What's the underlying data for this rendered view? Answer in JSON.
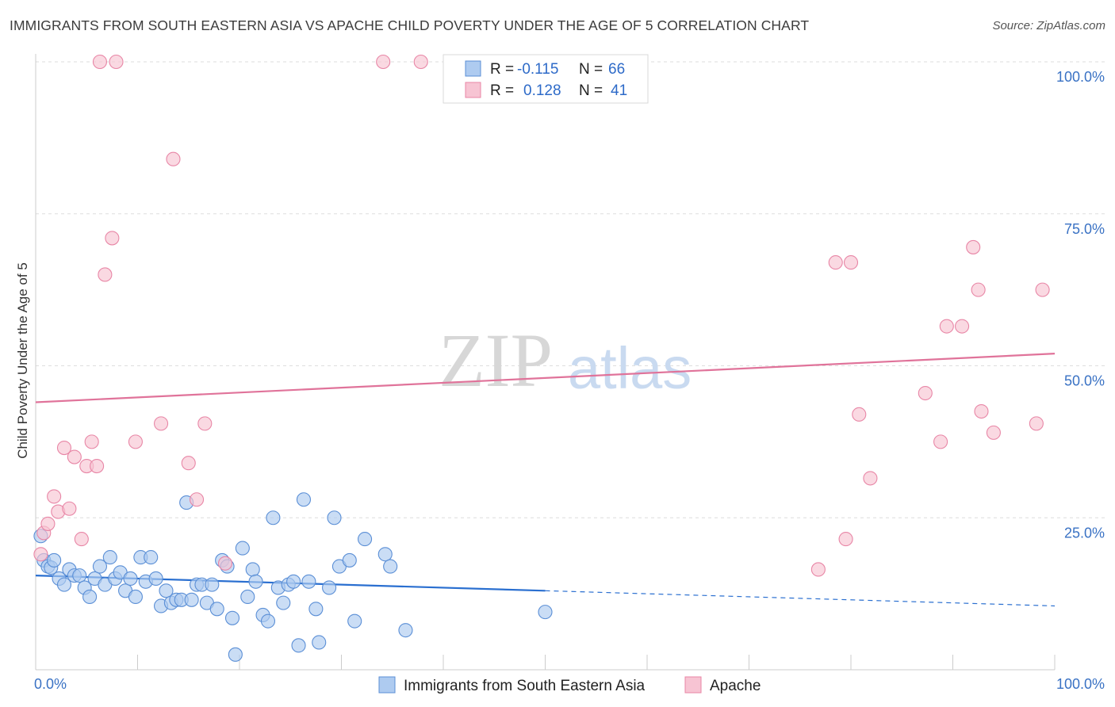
{
  "title": "IMMIGRANTS FROM SOUTH EASTERN ASIA VS APACHE CHILD POVERTY UNDER THE AGE OF 5 CORRELATION CHART",
  "source": "Source: ZipAtlas.com",
  "watermark": {
    "zip": "ZIP",
    "atlas": "atlas"
  },
  "colors": {
    "blue_fill": "#aecbf0",
    "blue_stroke": "#5b8fd6",
    "blue_line": "#2a6fd0",
    "pink_fill": "#f7c4d3",
    "pink_stroke": "#e886a6",
    "pink_line": "#e0739a",
    "tick_text": "#3a72c4"
  },
  "legend_box": {
    "rows": [
      {
        "r_label": "R =",
        "r_value": "-0.115",
        "n_label": "N =",
        "n_value": "66"
      },
      {
        "r_label": "R =",
        "r_value": "0.128",
        "n_label": "N =",
        "n_value": "41"
      }
    ]
  },
  "chart_data": {
    "type": "scatter",
    "title": "IMMIGRANTS FROM SOUTH EASTERN ASIA VS APACHE CHILD POVERTY UNDER THE AGE OF 5 CORRELATION CHART",
    "xlabel": "",
    "ylabel": "Child Poverty Under the Age of 5",
    "xlim": [
      0,
      100
    ],
    "ylim": [
      0,
      100
    ],
    "x_tick_labels": [
      "0.0%",
      "100.0%"
    ],
    "y_ticks": [
      25,
      50,
      75,
      100
    ],
    "y_tick_labels": [
      "25.0%",
      "50.0%",
      "75.0%",
      "100.0%"
    ],
    "grid": true,
    "legend_position": "bottom",
    "series": [
      {
        "name": "Immigrants from South Eastern Asia",
        "color": "#aecbf0",
        "points": [
          [
            0.5,
            22.0
          ],
          [
            0.8,
            18.0
          ],
          [
            1.2,
            17.0
          ],
          [
            1.5,
            16.8
          ],
          [
            1.8,
            18.0
          ],
          [
            2.3,
            15.0
          ],
          [
            2.8,
            14.0
          ],
          [
            3.3,
            16.5
          ],
          [
            3.8,
            15.5
          ],
          [
            4.3,
            15.5
          ],
          [
            4.8,
            13.5
          ],
          [
            5.3,
            12.0
          ],
          [
            5.8,
            15.0
          ],
          [
            6.3,
            17.0
          ],
          [
            6.8,
            14.0
          ],
          [
            7.3,
            18.5
          ],
          [
            7.8,
            15.0
          ],
          [
            8.3,
            16.0
          ],
          [
            8.8,
            13.0
          ],
          [
            9.3,
            15.0
          ],
          [
            9.8,
            12.0
          ],
          [
            10.3,
            18.5
          ],
          [
            10.8,
            14.5
          ],
          [
            11.3,
            18.5
          ],
          [
            11.8,
            15.0
          ],
          [
            12.3,
            10.5
          ],
          [
            12.8,
            13.0
          ],
          [
            13.3,
            11.0
          ],
          [
            13.8,
            11.5
          ],
          [
            14.3,
            11.5
          ],
          [
            14.8,
            27.5
          ],
          [
            15.3,
            11.5
          ],
          [
            15.8,
            14.0
          ],
          [
            16.3,
            14.0
          ],
          [
            16.8,
            11.0
          ],
          [
            17.3,
            14.0
          ],
          [
            17.8,
            10.0
          ],
          [
            18.3,
            18.0
          ],
          [
            18.8,
            17.0
          ],
          [
            19.3,
            8.5
          ],
          [
            19.6,
            2.5
          ],
          [
            20.3,
            20.0
          ],
          [
            20.8,
            12.0
          ],
          [
            21.3,
            16.5
          ],
          [
            21.6,
            14.5
          ],
          [
            22.3,
            9.0
          ],
          [
            22.8,
            8.0
          ],
          [
            23.3,
            25.0
          ],
          [
            23.8,
            13.5
          ],
          [
            24.3,
            11.0
          ],
          [
            24.8,
            14.0
          ],
          [
            25.3,
            14.5
          ],
          [
            25.8,
            4.0
          ],
          [
            26.3,
            28.0
          ],
          [
            26.8,
            14.5
          ],
          [
            27.5,
            10.0
          ],
          [
            27.8,
            4.5
          ],
          [
            28.8,
            13.5
          ],
          [
            29.3,
            25.0
          ],
          [
            29.8,
            17.0
          ],
          [
            30.8,
            18.0
          ],
          [
            31.3,
            8.0
          ],
          [
            32.3,
            21.5
          ],
          [
            34.3,
            19.0
          ],
          [
            34.8,
            17.0
          ],
          [
            36.3,
            6.5
          ],
          [
            50.0,
            9.5
          ]
        ],
        "trend": {
          "x1": 0,
          "y1": 15.5,
          "x2": 50,
          "y2": 13.0,
          "dash_to_x": 100,
          "dash_to_y": 10.5
        }
      },
      {
        "name": "Apache",
        "color": "#f7c4d3",
        "points": [
          [
            0.5,
            19.0
          ],
          [
            0.8,
            22.5
          ],
          [
            1.2,
            24.0
          ],
          [
            1.8,
            28.5
          ],
          [
            2.2,
            26.0
          ],
          [
            2.8,
            36.5
          ],
          [
            3.3,
            26.5
          ],
          [
            3.8,
            35.0
          ],
          [
            4.5,
            21.5
          ],
          [
            5.0,
            33.5
          ],
          [
            5.5,
            37.5
          ],
          [
            6.0,
            33.5
          ],
          [
            6.3,
            100.0
          ],
          [
            6.8,
            65.0
          ],
          [
            7.5,
            71.0
          ],
          [
            7.9,
            100.0
          ],
          [
            9.8,
            37.5
          ],
          [
            12.3,
            40.5
          ],
          [
            13.5,
            84.0
          ],
          [
            15.0,
            34.0
          ],
          [
            15.8,
            28.0
          ],
          [
            16.6,
            40.5
          ],
          [
            18.6,
            17.5
          ],
          [
            34.1,
            100.0
          ],
          [
            37.8,
            100.0
          ],
          [
            76.8,
            16.5
          ],
          [
            78.5,
            67.0
          ],
          [
            79.5,
            21.5
          ],
          [
            80.0,
            67.0
          ],
          [
            80.8,
            42.0
          ],
          [
            81.9,
            31.5
          ],
          [
            87.3,
            45.5
          ],
          [
            88.8,
            37.5
          ],
          [
            89.4,
            56.5
          ],
          [
            90.9,
            56.5
          ],
          [
            92.0,
            69.5
          ],
          [
            92.5,
            62.5
          ],
          [
            92.8,
            42.5
          ],
          [
            94.0,
            39.0
          ],
          [
            98.2,
            40.5
          ],
          [
            98.8,
            62.5
          ]
        ],
        "trend": {
          "x1": 0,
          "y1": 44.0,
          "x2": 100,
          "y2": 52.0
        }
      }
    ]
  }
}
